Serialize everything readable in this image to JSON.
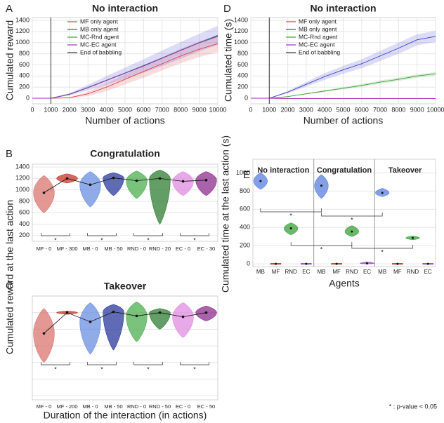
{
  "chart_data": [
    {
      "type": "line",
      "panel": "A",
      "title": "No interaction",
      "xlabel": "Number of actions",
      "ylabel": "Cumulated reward",
      "x": [
        0,
        1000,
        2000,
        3000,
        4000,
        5000,
        6000,
        7000,
        8000,
        9000,
        10000
      ],
      "xlim": [
        0,
        10000
      ],
      "xticks": [
        0,
        1000,
        2000,
        3000,
        4000,
        5000,
        6000,
        7000,
        8000,
        9000,
        10000
      ],
      "ylim": [
        -100,
        1450
      ],
      "yticks": [
        0,
        200,
        400,
        600,
        800,
        1000,
        1200,
        1400
      ],
      "grid": true,
      "legend": "upper left",
      "series": [
        {
          "name": "MF only agent",
          "color": "#e0404a",
          "values": [
            0,
            0,
            10,
            80,
            200,
            340,
            480,
            620,
            760,
            880,
            980
          ],
          "errors": [
            0,
            0,
            10,
            40,
            70,
            90,
            110,
            120,
            130,
            140,
            150
          ]
        },
        {
          "name": "MB only agent",
          "color": "#3b3bd0",
          "values": [
            0,
            0,
            70,
            190,
            320,
            450,
            580,
            720,
            860,
            1000,
            1130
          ],
          "errors": [
            0,
            0,
            20,
            50,
            80,
            100,
            120,
            140,
            150,
            160,
            170
          ]
        },
        {
          "name": "MC-Rnd agent",
          "color": "#3aa03a",
          "values": [
            0,
            0,
            75,
            195,
            325,
            455,
            590,
            725,
            865,
            1000,
            1120
          ]
        },
        {
          "name": "MC-EC agent",
          "color": "#a030c0",
          "values": [
            0,
            0,
            70,
            190,
            320,
            450,
            585,
            720,
            860,
            995,
            1110
          ]
        }
      ],
      "vline": {
        "name": "End of babbling",
        "x": 1000,
        "color": "#333333"
      }
    },
    {
      "type": "line",
      "panel": "D",
      "title": "No interaction",
      "xlabel": "Number of actions",
      "ylabel": "Cumulated time (s)",
      "x": [
        0,
        1000,
        2000,
        3000,
        4000,
        5000,
        6000,
        7000,
        8000,
        9000,
        10000
      ],
      "xlim": [
        0,
        10000
      ],
      "xticks": [
        0,
        1000,
        2000,
        3000,
        4000,
        5000,
        6000,
        7000,
        8000,
        9000,
        10000
      ],
      "ylim": [
        -100,
        1450
      ],
      "yticks": [
        0,
        200,
        400,
        600,
        800,
        1000,
        1200,
        1400
      ],
      "grid": true,
      "legend": "upper left",
      "series": [
        {
          "name": "MF only agent",
          "color": "#e0404a",
          "values": [
            0,
            0,
            -5,
            -5,
            -5,
            -5,
            -5,
            -5,
            -5,
            -5,
            -5
          ]
        },
        {
          "name": "MB only agent",
          "color": "#3b3bd0",
          "values": [
            0,
            0,
            110,
            250,
            390,
            510,
            620,
            760,
            900,
            1050,
            1110
          ],
          "errors": [
            0,
            0,
            20,
            40,
            60,
            70,
            80,
            90,
            100,
            100,
            100
          ]
        },
        {
          "name": "MC-Rnd agent",
          "color": "#3aa03a",
          "values": [
            0,
            0,
            30,
            80,
            130,
            180,
            230,
            290,
            340,
            400,
            440
          ],
          "errors": [
            0,
            0,
            5,
            10,
            15,
            20,
            25,
            30,
            30,
            30,
            30
          ]
        },
        {
          "name": "MC-EC agent",
          "color": "#a030c0",
          "values": [
            0,
            0,
            -5,
            -5,
            -5,
            -5,
            -5,
            -5,
            -5,
            -5,
            -5
          ]
        }
      ],
      "vline": {
        "name": "End of babbling",
        "x": 1000,
        "color": "#333333"
      }
    },
    {
      "type": "violin",
      "panel": "B",
      "title": "Congratulation",
      "ylabel": "Cumulated reward at the last action",
      "categories": [
        "MF - 0",
        "MF - 300",
        "MB - 0",
        "MB - 50",
        "RND - 0",
        "RND - 20",
        "EC - 0",
        "EC - 30"
      ],
      "values": [
        950,
        1200,
        1090,
        1210,
        1160,
        1200,
        1150,
        1170
      ],
      "mins": [
        600,
        1120,
        700,
        900,
        850,
        400,
        900,
        900
      ],
      "maxs": [
        1250,
        1280,
        1320,
        1300,
        1330,
        1350,
        1320,
        1320
      ],
      "colors": [
        "#d9766f",
        "#c0392b",
        "#6a8fe0",
        "#2b3a9e",
        "#4caf50",
        "#2e7d32",
        "#e08ce0",
        "#8e2f8e"
      ],
      "ylim": [
        100,
        1450
      ],
      "yticks": [
        200,
        400,
        600,
        800,
        1000,
        1200,
        1400
      ],
      "grid": true,
      "brackets": [
        "*",
        "*",
        "*",
        "*"
      ]
    },
    {
      "type": "violin",
      "panel": "C",
      "title": "Takeover",
      "xlabel": "Duration of the interaction (in actions)",
      "categories": [
        "MF - 0",
        "MF - 200",
        "MB - 0",
        "MB - 50",
        "RND - 0",
        "RND - 50",
        "EC - 0",
        "EC - 50"
      ],
      "values": [
        950,
        1200,
        1090,
        1210,
        1160,
        1200,
        1150,
        1200
      ],
      "mins": [
        600,
        1180,
        700,
        750,
        850,
        1000,
        900,
        1100
      ],
      "maxs": [
        1250,
        1220,
        1320,
        1300,
        1330,
        1250,
        1320,
        1280
      ],
      "colors": [
        "#d9766f",
        "#c0392b",
        "#6a8fe0",
        "#2b3a9e",
        "#4caf50",
        "#2e7d32",
        "#e08ce0",
        "#8e2f8e"
      ],
      "ylim": [
        150,
        1400
      ],
      "ygrid": [
        200,
        400,
        600,
        800,
        1000,
        1200,
        1400
      ],
      "brackets": [
        "*",
        "*",
        "*",
        "*"
      ]
    },
    {
      "type": "grouped_violin",
      "panel": "E",
      "xlabel": "Agents",
      "ylabel": "Cumulated time at the last action (s)",
      "groups": [
        {
          "name": "No interaction",
          "categories": [
            "MB",
            "MF",
            "RND",
            "EC"
          ],
          "values": [
            910,
            0,
            390,
            0
          ],
          "mins": [
            820,
            0,
            320,
            0
          ],
          "maxs": [
            1000,
            0,
            450,
            0
          ]
        },
        {
          "name": "Congratulation",
          "categories": [
            "MB",
            "MF",
            "RND",
            "EC"
          ],
          "values": [
            860,
            0,
            355,
            5
          ],
          "mins": [
            720,
            0,
            300,
            0
          ],
          "maxs": [
            980,
            0,
            420,
            20
          ]
        },
        {
          "name": "Takeover",
          "categories": [
            "MB",
            "MF",
            "RND",
            "EC"
          ],
          "values": [
            780,
            0,
            285,
            0
          ],
          "mins": [
            740,
            0,
            265,
            0
          ],
          "maxs": [
            830,
            0,
            305,
            0
          ]
        }
      ],
      "colors": [
        "#5a7fe0",
        "#c0392b",
        "#3aa03a",
        "#a040c0"
      ],
      "ylim": [
        -30,
        1150
      ],
      "yticks": [
        0,
        200,
        400,
        600,
        800,
        1000
      ],
      "grid": true,
      "brackets": [
        "*",
        "*",
        "*",
        "*"
      ]
    }
  ],
  "footnote": "* : p-value < 0.05"
}
